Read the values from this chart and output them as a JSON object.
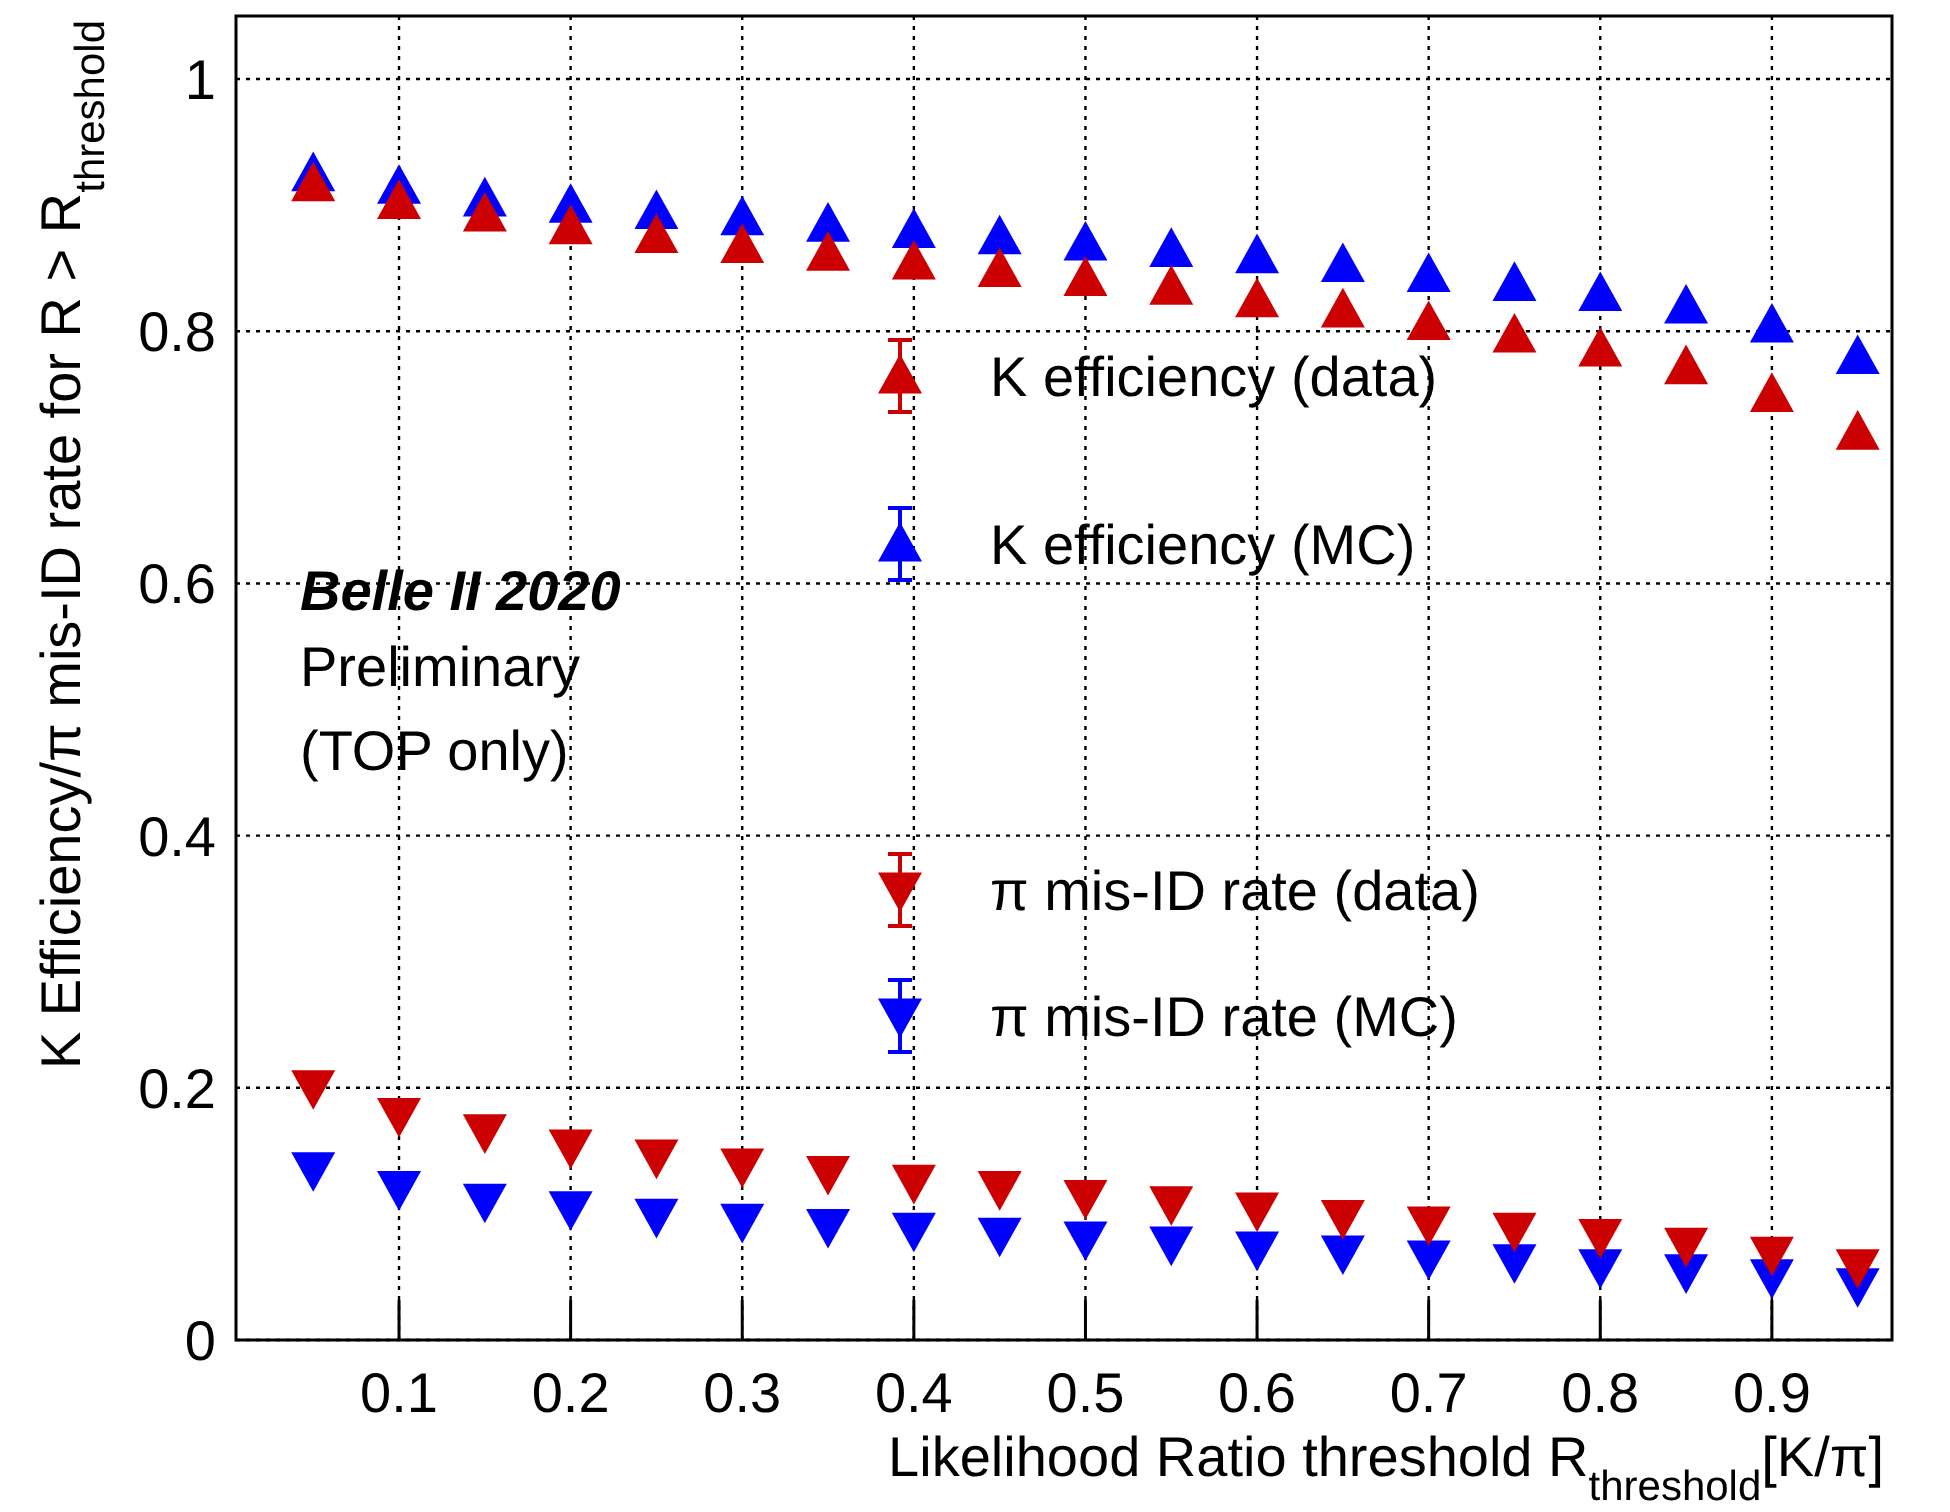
{
  "chart_data": {
    "type": "scatter",
    "xlabel": "Likelihood Ratio threshold R$_{threshold}$[K/π]",
    "ylabel": "K Efficiency/π mis-ID rate for R > R$_{threshold}$",
    "x": [
      0.05,
      0.1,
      0.15,
      0.2,
      0.25,
      0.3,
      0.35,
      0.4,
      0.45,
      0.5,
      0.55,
      0.6,
      0.65,
      0.7,
      0.75,
      0.8,
      0.85,
      0.9,
      0.95
    ],
    "series": [
      {
        "name": "K efficiency (data)",
        "color": "#cc0000",
        "marker": "triangle",
        "values": [
          0.917,
          0.903,
          0.893,
          0.883,
          0.876,
          0.868,
          0.862,
          0.855,
          0.849,
          0.842,
          0.835,
          0.825,
          0.817,
          0.807,
          0.797,
          0.786,
          0.772,
          0.75,
          0.72
        ]
      },
      {
        "name": "K efficiency (MC)",
        "color": "#0000ff",
        "marker": "triangle",
        "values": [
          0.925,
          0.915,
          0.905,
          0.9,
          0.895,
          0.89,
          0.885,
          0.88,
          0.875,
          0.87,
          0.865,
          0.86,
          0.853,
          0.845,
          0.838,
          0.83,
          0.82,
          0.805,
          0.78
        ]
      },
      {
        "name": "π mis-ID rate (data)",
        "color": "#cc0000",
        "marker": "triangle-down",
        "values": [
          0.2,
          0.178,
          0.165,
          0.153,
          0.145,
          0.138,
          0.132,
          0.125,
          0.12,
          0.113,
          0.108,
          0.103,
          0.097,
          0.092,
          0.087,
          0.082,
          0.075,
          0.068,
          0.058
        ]
      },
      {
        "name": "π mis-ID rate (MC)",
        "color": "#0000ff",
        "marker": "triangle-down",
        "values": [
          0.135,
          0.12,
          0.11,
          0.104,
          0.098,
          0.094,
          0.09,
          0.087,
          0.083,
          0.08,
          0.076,
          0.072,
          0.069,
          0.065,
          0.062,
          0.058,
          0.054,
          0.05,
          0.043
        ]
      }
    ],
    "xlim": [
      0.005,
      0.97
    ],
    "xticks": [
      0.1,
      0.2,
      0.3,
      0.4,
      0.5,
      0.6,
      0.7,
      0.8,
      0.9
    ],
    "ylim": [
      0,
      1.05
    ],
    "yticks": [
      {
        "value": 0,
        "label": "0"
      },
      0.2,
      0.4,
      0.6,
      0.8,
      {
        "value": 1,
        "label": "1"
      }
    ],
    "grid": true,
    "legend": "right",
    "annotations": [
      "Belle II 2020",
      "Preliminary",
      "(TOP only)"
    ]
  }
}
